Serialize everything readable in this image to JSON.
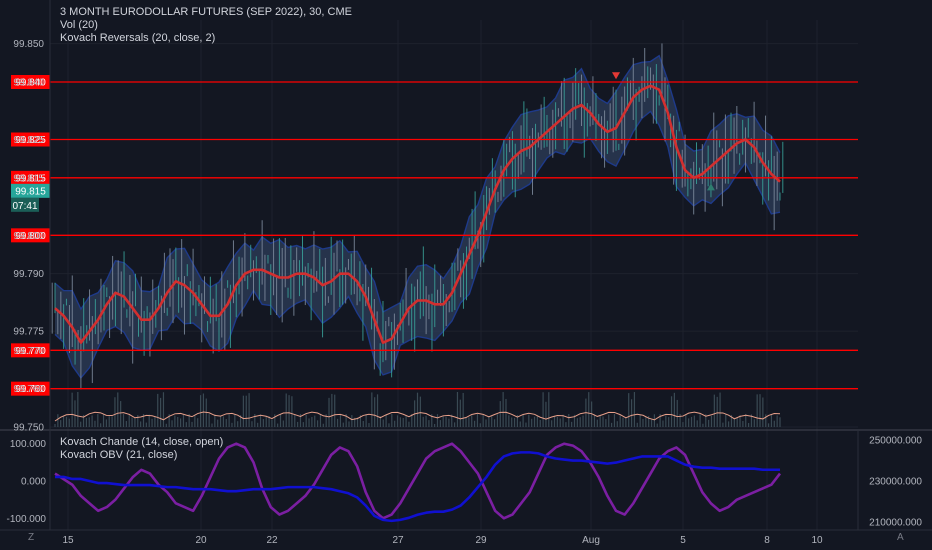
{
  "header": {
    "title": "3 MONTH EURODOLLAR FUTURES (SEP 2022), 30, CME",
    "volume": "Vol (20)",
    "overlay": "Kovach Reversals (20, close, 2)"
  },
  "lower_pane": {
    "indicator1": "Kovach Chande (14, close, open)",
    "indicator2": "Kovach OBV (21, close)"
  },
  "corner_icons": [
    "Z",
    "A"
  ],
  "colors": {
    "background": "#131722",
    "price_line": "#d32f2f",
    "band_fill": "#2d3e59",
    "band_edge": "#1e3a8a",
    "level_line": "#ff0000",
    "current_tag": "#26a69a",
    "volume_line": "#e8a08a",
    "chande_line": "#7b1fa2",
    "obv_line": "#1010d0"
  },
  "chart_data": [
    {
      "type": "line",
      "title": "3 MONTH EURODOLLAR FUTURES (SEP 2022), 30, CME",
      "y_ticks": [
        "99.850",
        "99.840",
        "99.825",
        "99.815",
        "99.800",
        "99.790",
        "99.775",
        "99.770",
        "99.760",
        "99.750"
      ],
      "ylim": [
        99.75,
        99.852
      ],
      "x_ticks": [
        "15",
        "20",
        "22",
        "27",
        "29",
        "Aug",
        "5",
        "8",
        "10"
      ],
      "horizontal_levels": [
        99.84,
        99.825,
        99.815,
        99.8,
        99.77,
        99.76
      ],
      "level_tags": [
        "99.840",
        "99.825",
        "99.815",
        "99.800",
        "99.770",
        "99.760"
      ],
      "current_price": "99.815",
      "countdown": "07:41",
      "series": [
        {
          "values": [
            99.781,
            99.779,
            99.776,
            99.772,
            99.775,
            99.778,
            99.782,
            99.785,
            99.784,
            99.781,
            99.778,
            99.778,
            99.781,
            99.785,
            99.788,
            99.787,
            99.785,
            99.782,
            99.779,
            99.779,
            99.782,
            99.787,
            99.79,
            99.791,
            99.791,
            99.79,
            99.789,
            99.789,
            99.79,
            99.79,
            99.789,
            99.787,
            99.788,
            99.79,
            99.79,
            99.788,
            99.784,
            99.778,
            99.772,
            99.773,
            99.777,
            99.781,
            99.783,
            99.783,
            99.782,
            99.782,
            99.785,
            99.79,
            99.795,
            99.8,
            99.806,
            99.812,
            99.817,
            99.82,
            99.822,
            99.823,
            99.825,
            99.827,
            99.829,
            99.831,
            99.833,
            99.834,
            99.832,
            99.829,
            99.827,
            99.828,
            99.832,
            99.836,
            99.838,
            99.839,
            99.838,
            99.832,
            99.823,
            99.817,
            99.815,
            99.816,
            99.818,
            99.82,
            99.822,
            99.824,
            99.825,
            99.823,
            99.819,
            99.816,
            99.814
          ]
        }
      ],
      "markers": [
        {
          "kind": "down-arrow",
          "index": 65,
          "value": 99.8415
        },
        {
          "kind": "up-arrow",
          "index": 76,
          "value": 99.8125
        }
      ]
    },
    {
      "type": "line",
      "y_ticks_left": [
        "100.000",
        "0.000",
        "-100.000"
      ],
      "ylim_left": [
        -110,
        110
      ],
      "y_ticks_right": [
        "250000.000",
        "230000.000",
        "210000.000"
      ],
      "ylim_right": [
        208000,
        252000
      ],
      "series": [
        {
          "name": "Kovach Chande (14, close, open)",
          "values": [
            20,
            5,
            -10,
            -40,
            -60,
            -80,
            -70,
            -50,
            -20,
            10,
            30,
            20,
            -10,
            -30,
            -60,
            -70,
            -80,
            -40,
            10,
            60,
            90,
            100,
            90,
            50,
            -20,
            -70,
            -90,
            -80,
            -60,
            -40,
            -10,
            30,
            70,
            90,
            80,
            40,
            -30,
            -80,
            -100,
            -90,
            -60,
            -20,
            20,
            60,
            80,
            90,
            100,
            80,
            50,
            20,
            -30,
            -80,
            -100,
            -90,
            -60,
            -30,
            20,
            70,
            90,
            100,
            95,
            80,
            50,
            10,
            -40,
            -80,
            -90,
            -60,
            -20,
            20,
            60,
            80,
            90,
            70,
            20,
            -30,
            -60,
            -80,
            -70,
            -50,
            -40,
            -30,
            -20,
            -10,
            20
          ]
        },
        {
          "name": "Kovach OBV (21, close)",
          "values": [
            232000,
            232000,
            231000,
            231000,
            230000,
            229000,
            229000,
            228500,
            228000,
            228000,
            228000,
            228000,
            227500,
            227000,
            227000,
            226500,
            226000,
            226000,
            226000,
            225500,
            225000,
            225000,
            225500,
            226000,
            226000,
            226000,
            226500,
            227000,
            227000,
            227000,
            227000,
            226500,
            226000,
            225000,
            224000,
            222000,
            218000,
            213000,
            211000,
            210500,
            211000,
            212000,
            213500,
            214500,
            215000,
            215000,
            216000,
            218000,
            222000,
            227000,
            232000,
            238000,
            242000,
            243500,
            244000,
            244000,
            243500,
            242000,
            241000,
            240500,
            240000,
            240000,
            239500,
            239000,
            238500,
            239000,
            240000,
            241000,
            242000,
            242000,
            242000,
            242000,
            240000,
            238000,
            237000,
            236500,
            236500,
            236000,
            236000,
            236000,
            236000,
            236000,
            235500,
            235500,
            235500
          ]
        }
      ]
    }
  ]
}
